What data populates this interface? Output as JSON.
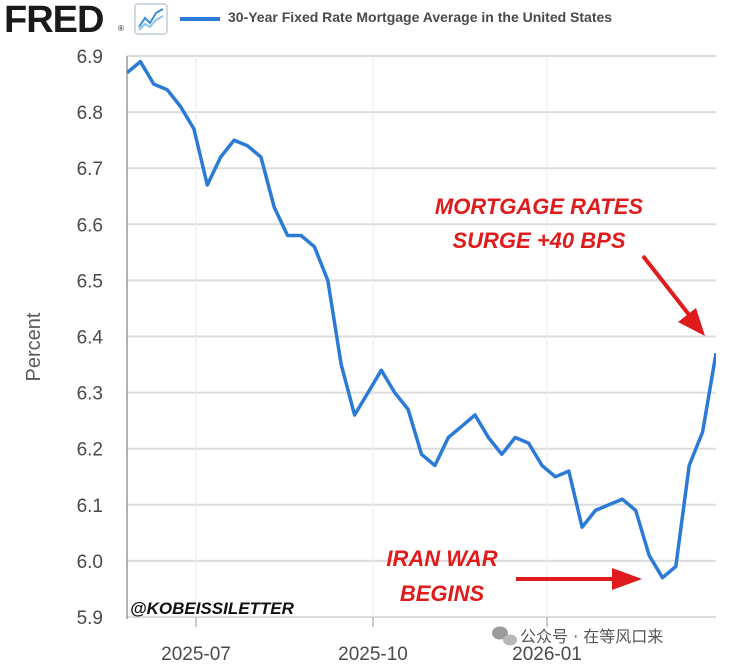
{
  "header": {
    "logo": "FRED",
    "logo_mark": "®",
    "legend_label": "30-Year Fixed Rate Mortgage Average in the United States",
    "series_color": "#2b7bd6"
  },
  "annotations": {
    "surge_line1": "MORTGAGE RATES",
    "surge_line2": "SURGE +40 BPS",
    "war_line1": "IRAN WAR",
    "war_line2": "BEGINS",
    "handle": "@KOBEISSILETTER",
    "watermark": "公众号 · 在等风口来",
    "annotation_color": "#e01b1b"
  },
  "chart_data": {
    "type": "line",
    "title": "30-Year Fixed Rate Mortgage Average in the United States",
    "xlabel": "",
    "ylabel": "Percent",
    "ylim": [
      5.9,
      6.9
    ],
    "yticks": [
      "6.9",
      "6.8",
      "6.7",
      "6.6",
      "6.5",
      "6.4",
      "6.3",
      "6.2",
      "6.1",
      "6.0",
      "5.9"
    ],
    "xticks": [
      "2025-07",
      "2025-10",
      "2026-01"
    ],
    "grid": true,
    "legend": "top",
    "series": [
      {
        "name": "30-Year Fixed Rate Mortgage Average in the United States",
        "values": [
          6.87,
          6.89,
          6.85,
          6.84,
          6.81,
          6.77,
          6.67,
          6.72,
          6.75,
          6.74,
          6.72,
          6.63,
          6.58,
          6.58,
          6.56,
          6.5,
          6.35,
          6.26,
          6.3,
          6.34,
          6.3,
          6.27,
          6.19,
          6.17,
          6.22,
          6.24,
          6.26,
          6.22,
          6.19,
          6.22,
          6.21,
          6.17,
          6.15,
          6.16,
          6.06,
          6.09,
          6.1,
          6.11,
          6.09,
          6.01,
          5.97,
          5.99,
          6.17,
          6.23,
          6.37
        ]
      }
    ]
  }
}
